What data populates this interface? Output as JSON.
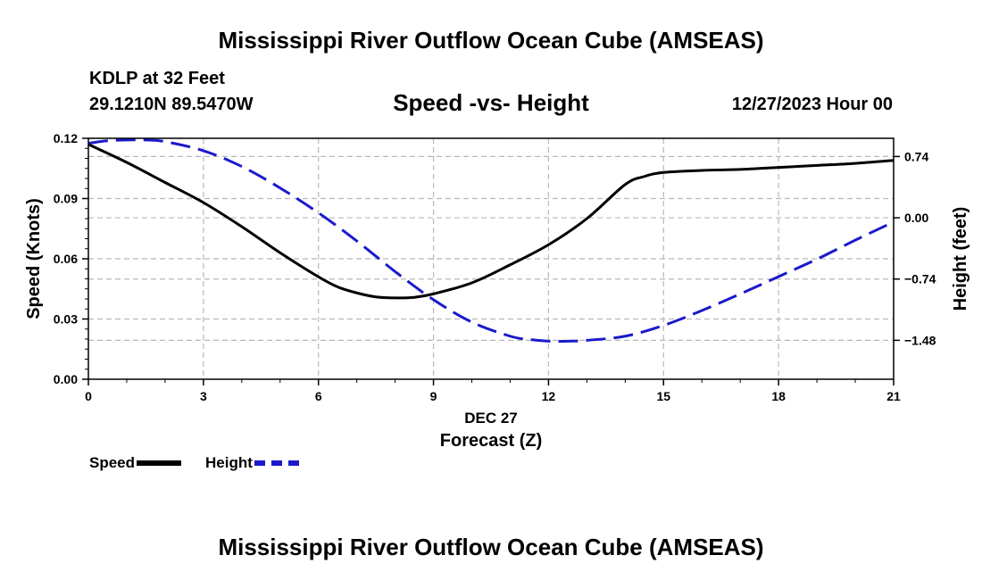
{
  "header": {
    "title": "Mississippi River Outflow Ocean Cube (AMSEAS)",
    "station": "KDLP at 32 Feet",
    "coords": "29.1210N  89.5470W",
    "subtitle": "Speed -vs- Height",
    "datetime": "12/27/2023 Hour 00"
  },
  "footer": {
    "title": "Mississippi River Outflow Ocean Cube (AMSEAS)"
  },
  "legend": {
    "speed": "Speed",
    "height": "Height"
  },
  "colors": {
    "speed": "#000000",
    "height": "#1a1acc",
    "grid": "#b8b8b8"
  },
  "chart_data": {
    "type": "line",
    "xlabel": "Forecast (Z)",
    "xdate_label": "DEC 27",
    "ylabel": "Speed (Knots)",
    "y2label": "Height (feet)",
    "xlim": [
      0,
      21
    ],
    "ylim": [
      0,
      0.12
    ],
    "y2lim": [
      -1.95,
      0.96
    ],
    "xticks": [
      0,
      3,
      6,
      9,
      12,
      15,
      18,
      21
    ],
    "xtick_labels": [
      "0",
      "3",
      "6",
      "9",
      "12",
      "15",
      "18",
      "21"
    ],
    "yticks": [
      0,
      0.03,
      0.06,
      0.09,
      0.12
    ],
    "ytick_labels": [
      "0.00",
      "0.03",
      "0.06",
      "0.09",
      "0.12"
    ],
    "y2ticks": [
      0.74,
      0,
      -0.74,
      -1.48
    ],
    "y2tick_labels": [
      "0.74",
      "0.00",
      "−0.74",
      "−1.48"
    ],
    "grid": true,
    "series": [
      {
        "name": "Speed",
        "axis": "left",
        "style": "solid",
        "x": [
          0,
          1,
          2,
          3,
          4,
          5,
          6,
          6.5,
          7,
          7.5,
          8,
          8.5,
          9,
          10,
          11,
          12,
          13,
          14,
          14.5,
          15,
          16,
          17,
          18,
          19,
          20,
          21
        ],
        "values": [
          0.117,
          0.108,
          0.098,
          0.088,
          0.076,
          0.063,
          0.051,
          0.046,
          0.043,
          0.041,
          0.0405,
          0.0408,
          0.0425,
          0.048,
          0.057,
          0.067,
          0.08,
          0.097,
          0.101,
          0.103,
          0.104,
          0.1045,
          0.1055,
          0.1065,
          0.1075,
          0.109
        ]
      },
      {
        "name": "Height",
        "axis": "right",
        "style": "dashed",
        "x": [
          0,
          0.5,
          1,
          1.5,
          2,
          3,
          4,
          5,
          6,
          7,
          8,
          9,
          10,
          11,
          11.5,
          12,
          12.5,
          13,
          14,
          15,
          16,
          17,
          18,
          19,
          20,
          21
        ],
        "values": [
          0.9,
          0.93,
          0.94,
          0.94,
          0.92,
          0.81,
          0.62,
          0.36,
          0.06,
          -0.28,
          -0.65,
          -0.99,
          -1.26,
          -1.43,
          -1.47,
          -1.49,
          -1.49,
          -1.48,
          -1.43,
          -1.3,
          -1.12,
          -0.92,
          -0.71,
          -0.5,
          -0.27,
          -0.05
        ]
      }
    ]
  }
}
